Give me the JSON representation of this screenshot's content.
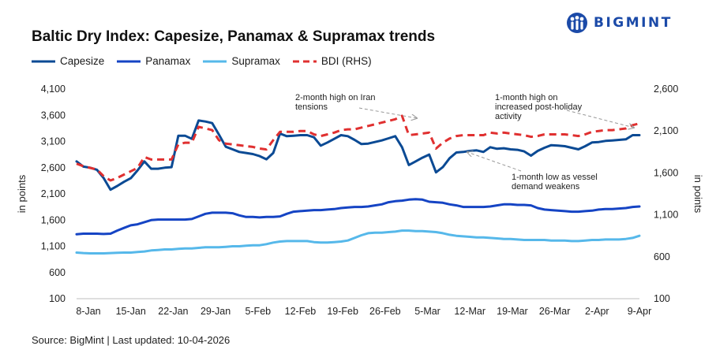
{
  "brand": {
    "name": "BIGMINT",
    "color": "#1b4aa8"
  },
  "chart_data": {
    "type": "line",
    "title": "Baltic Dry Index: Capesize, Panamax & Supramax trends",
    "ylabel": "in points",
    "y2label": "in points",
    "ylim": [
      100,
      4100
    ],
    "y2lim": [
      100,
      2600
    ],
    "yticks": [
      "4,100",
      "3,600",
      "3,100",
      "2,600",
      "2,100",
      "1,600",
      "1,100",
      "600",
      "100"
    ],
    "y2ticks": [
      "2,600",
      "2,100",
      "1,600",
      "1,100",
      "600",
      "100"
    ],
    "xticks": [
      "8-Jan",
      "15-Jan",
      "22-Jan",
      "29-Jan",
      "5-Feb",
      "12-Feb",
      "19-Feb",
      "26-Feb",
      "5-Mar",
      "12-Mar",
      "19-Mar",
      "26-Mar",
      "2-Apr",
      "9-Apr"
    ],
    "series": [
      {
        "name": "Capesize",
        "axis": "left",
        "color": "#0b4a94",
        "dash": false,
        "values": [
          2720,
          2620,
          2600,
          2560,
          2400,
          2180,
          2250,
          2330,
          2400,
          2550,
          2720,
          2580,
          2580,
          2600,
          2610,
          3210,
          3210,
          3150,
          3500,
          3480,
          3450,
          3230,
          3000,
          2950,
          2900,
          2880,
          2860,
          2820,
          2760,
          2880,
          3250,
          3200,
          3210,
          3220,
          3220,
          3180,
          3020,
          3080,
          3150,
          3220,
          3200,
          3130,
          3050,
          3060,
          3090,
          3120,
          3160,
          3200,
          2990,
          2650,
          2720,
          2790,
          2850,
          2510,
          2610,
          2780,
          2890,
          2900,
          2920,
          2930,
          2900,
          2990,
          2960,
          2970,
          2950,
          2940,
          2910,
          2830,
          2920,
          2980,
          3030,
          3020,
          3010,
          2980,
          2950,
          3010,
          3080,
          3090,
          3110,
          3120,
          3130,
          3140,
          3220,
          3220
        ]
      },
      {
        "name": "Panamax",
        "axis": "left",
        "color": "#1544c4",
        "dash": false,
        "values": [
          1330,
          1340,
          1340,
          1340,
          1335,
          1340,
          1400,
          1450,
          1500,
          1520,
          1560,
          1600,
          1610,
          1610,
          1610,
          1610,
          1610,
          1620,
          1670,
          1720,
          1740,
          1740,
          1740,
          1730,
          1690,
          1660,
          1660,
          1650,
          1660,
          1660,
          1670,
          1720,
          1760,
          1770,
          1780,
          1790,
          1790,
          1800,
          1810,
          1830,
          1840,
          1850,
          1850,
          1860,
          1880,
          1900,
          1940,
          1960,
          1970,
          1990,
          2000,
          1990,
          1950,
          1940,
          1930,
          1900,
          1880,
          1850,
          1850,
          1850,
          1850,
          1860,
          1880,
          1900,
          1900,
          1890,
          1890,
          1880,
          1830,
          1800,
          1790,
          1780,
          1770,
          1760,
          1760,
          1770,
          1780,
          1800,
          1810,
          1810,
          1820,
          1830,
          1850,
          1860
        ]
      },
      {
        "name": "Supramax",
        "axis": "left",
        "color": "#56b8ea",
        "dash": false,
        "values": [
          980,
          970,
          965,
          965,
          965,
          970,
          975,
          980,
          980,
          990,
          1000,
          1020,
          1030,
          1040,
          1040,
          1050,
          1060,
          1060,
          1070,
          1080,
          1080,
          1080,
          1090,
          1100,
          1100,
          1110,
          1120,
          1120,
          1140,
          1170,
          1190,
          1200,
          1200,
          1200,
          1200,
          1180,
          1170,
          1170,
          1180,
          1190,
          1210,
          1260,
          1310,
          1350,
          1360,
          1360,
          1370,
          1380,
          1400,
          1400,
          1390,
          1390,
          1380,
          1370,
          1350,
          1320,
          1300,
          1290,
          1280,
          1270,
          1270,
          1260,
          1250,
          1240,
          1240,
          1230,
          1220,
          1220,
          1220,
          1220,
          1210,
          1210,
          1210,
          1200,
          1200,
          1210,
          1220,
          1220,
          1230,
          1230,
          1230,
          1240,
          1260,
          1300
        ]
      },
      {
        "name": "BDI (RHS)",
        "axis": "right",
        "color": "#e03030",
        "dash": true,
        "values": [
          1710,
          1680,
          1660,
          1640,
          1560,
          1510,
          1540,
          1580,
          1620,
          1660,
          1790,
          1760,
          1760,
          1760,
          1760,
          1940,
          1960,
          1960,
          2150,
          2130,
          2110,
          1990,
          1950,
          1940,
          1930,
          1920,
          1910,
          1890,
          1880,
          1990,
          2090,
          2090,
          2090,
          2100,
          2100,
          2060,
          2040,
          2060,
          2080,
          2110,
          2120,
          2120,
          2140,
          2160,
          2180,
          2200,
          2220,
          2240,
          2280,
          2050,
          2060,
          2070,
          2080,
          1890,
          1960,
          2010,
          2040,
          2050,
          2050,
          2050,
          2050,
          2080,
          2070,
          2080,
          2070,
          2060,
          2050,
          2030,
          2040,
          2060,
          2060,
          2060,
          2060,
          2050,
          2040,
          2060,
          2090,
          2100,
          2110,
          2110,
          2120,
          2130,
          2170,
          2190
        ]
      }
    ],
    "annotations": [
      {
        "lines": [
          "2-month high on Iran",
          "tensions"
        ]
      },
      {
        "lines": [
          "1-month high on",
          "increased post-holiday",
          "activity"
        ]
      },
      {
        "lines": [
          "1-month low as vessel",
          "demand weakens"
        ]
      }
    ]
  },
  "source": "Source: BigMint | Last updated: 10-04-2026"
}
